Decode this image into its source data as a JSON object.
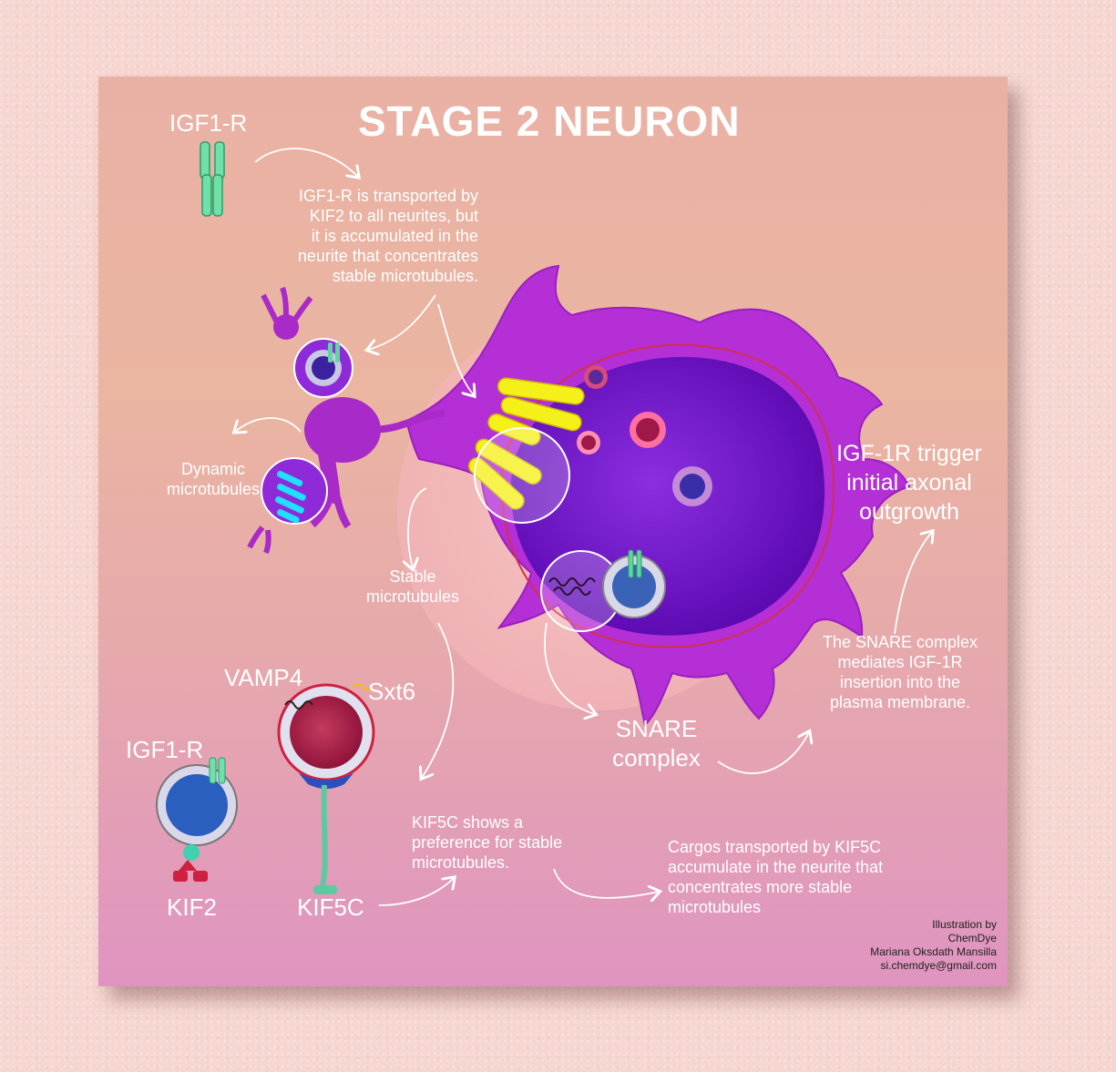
{
  "title": "STAGE 2 NEURON",
  "labels": {
    "igf1r_top": "IGF1-R",
    "igf1r_bottom": "IGF1-R",
    "vamp4": "VAMP4",
    "sxt6": "Sxt6",
    "kif2": "KIF2",
    "kif5c": "KIF5C",
    "snare_complex": [
      "SNARE",
      "complex"
    ],
    "dynamic_mt": [
      "Dynamic",
      "microtubules"
    ],
    "stable_mt": [
      "Stable",
      "microtubules"
    ],
    "igf1r_trigger": [
      "IGF-1R  trigger",
      "initial axonal",
      "outgrowth"
    ]
  },
  "notes": {
    "transport": [
      "IGF1-R is transported by",
      "KIF2 to all neurites, but",
      "it is accumulated in the",
      "neurite that concentrates",
      "stable microtubules."
    ],
    "snare": [
      "The SNARE complex",
      "mediates IGF-1R",
      "insertion into the",
      "plasma membrane."
    ],
    "kif5c_pref": [
      "KIF5C shows a",
      "preference for stable",
      "microtubules."
    ],
    "cargos": [
      "Cargos transported by KIF5C",
      "accumulate in the neurite that",
      "concentrates more stable",
      "microtubules"
    ]
  },
  "credit": [
    "Illustration by",
    "ChemDye",
    "Mariana Oksdath Mansilla",
    "si.chemdye@gmail.com"
  ],
  "colors": {
    "neuron_magenta": "#b52fd6",
    "nucleus_purple": "#6a0fc4",
    "microtubule_yellow": "#f5ef1a",
    "receptor_green": "#5fd6a0",
    "vesicle_red": "#b0224a",
    "vesicle_blue": "#2a5fbf"
  }
}
